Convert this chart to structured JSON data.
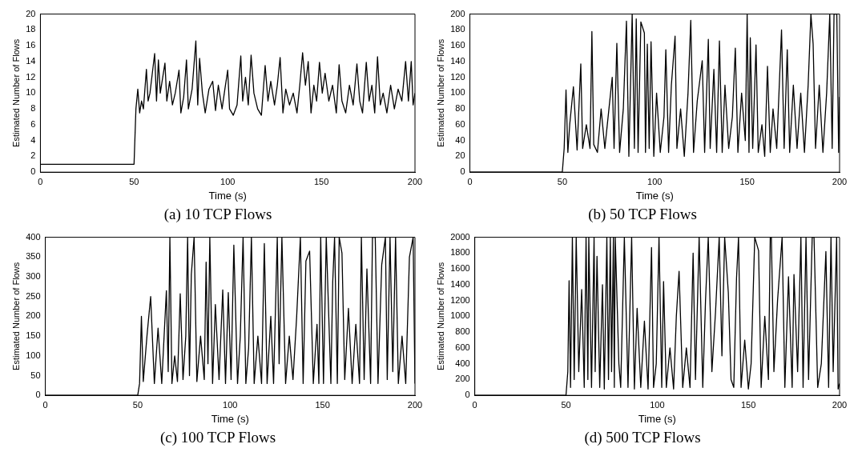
{
  "chart_data": [
    {
      "type": "line",
      "title": "(a) 10 TCP Flows",
      "xlabel": "Time (s)",
      "ylabel": "Estimated Number of Flows",
      "xlim": [
        0,
        200
      ],
      "ylim": [
        0,
        20
      ],
      "xticks": [
        0,
        50,
        100,
        150,
        200
      ],
      "yticks": [
        0,
        2,
        4,
        6,
        8,
        10,
        12,
        14,
        16,
        18,
        20
      ],
      "x": [
        0,
        50,
        51,
        52,
        53,
        54,
        55,
        56.6,
        57.5,
        58.5,
        61,
        62,
        63,
        64,
        66.5,
        67.5,
        69,
        70.5,
        72,
        74,
        75,
        76.5,
        78,
        79,
        81,
        83,
        84,
        85,
        86.5,
        88,
        90,
        92,
        93.5,
        95,
        97,
        98.5,
        100,
        101,
        103,
        105,
        107,
        108,
        109.5,
        111,
        112.5,
        114,
        116,
        118,
        120,
        121.5,
        123,
        125,
        126.5,
        128,
        129.5,
        131,
        133,
        135,
        137,
        138.5,
        140,
        141.5,
        143,
        144.5,
        146,
        147.5,
        149,
        150.5,
        152,
        154,
        156,
        158,
        159.5,
        161,
        163,
        165,
        167,
        169,
        170.5,
        172,
        174,
        175.5,
        177,
        178.5,
        180,
        181.5,
        183,
        185,
        187,
        189,
        191,
        193,
        195,
        196.5,
        198,
        199,
        200
      ],
      "series": [
        {
          "color": "#000000",
          "values": [
            1,
            1,
            8,
            10.5,
            7.5,
            9,
            8,
            13,
            9,
            10,
            15,
            9,
            14.2,
            10,
            13.8,
            9,
            11.5,
            8.5,
            10,
            12.9,
            7.5,
            9.5,
            14.2,
            8,
            10.5,
            16.6,
            8.5,
            14.4,
            10,
            7.5,
            10.5,
            11.5,
            7.8,
            11,
            8,
            10.5,
            12.9,
            8,
            7.2,
            8.5,
            14.7,
            9,
            12,
            8.5,
            14.8,
            10,
            8,
            7.2,
            13.5,
            9,
            11.5,
            8.5,
            11,
            14.5,
            7.5,
            10.5,
            8.5,
            10,
            7.5,
            11,
            15.1,
            11,
            14,
            7.5,
            11,
            9,
            13.9,
            10,
            12.5,
            9,
            11,
            7.5,
            13.6,
            9,
            7.5,
            11,
            8.5,
            13.7,
            9,
            7.5,
            13.9,
            9,
            11,
            7.5,
            14.6,
            8.5,
            10,
            7.5,
            11,
            8,
            10.5,
            9,
            14,
            9,
            14,
            8.5,
            10
          ]
        }
      ]
    },
    {
      "type": "line",
      "title": "(b) 50 TCP Flows",
      "xlabel": "Time (s)",
      "ylabel": "Estimated Number of Flows",
      "xlim": [
        0,
        200
      ],
      "ylim": [
        0,
        200
      ],
      "xticks": [
        0,
        50,
        100,
        150,
        200
      ],
      "yticks": [
        0,
        20,
        40,
        60,
        80,
        100,
        120,
        140,
        160,
        180,
        200
      ],
      "x": [
        0,
        50,
        51,
        52,
        53,
        54,
        56,
        58,
        60,
        61,
        63,
        65,
        66,
        67,
        69,
        71,
        73,
        75,
        77,
        78,
        79.5,
        81,
        83,
        84.7,
        86,
        87.8,
        89,
        90,
        91,
        92.5,
        94.4,
        95,
        96,
        97,
        98,
        99.5,
        101,
        103,
        105,
        106,
        107.5,
        109,
        111,
        112,
        114,
        116,
        118,
        119.5,
        121,
        123,
        125.7,
        127,
        129,
        130,
        132,
        133.5,
        135,
        136.5,
        138,
        140,
        142,
        143.6,
        145,
        147,
        149,
        150,
        151,
        151.7,
        153,
        154.8,
        156,
        158,
        159.5,
        161,
        162.5,
        164,
        166,
        168.6,
        170,
        171.7,
        173,
        175,
        177,
        179,
        181,
        183,
        184.5,
        185.7,
        187,
        189,
        191,
        193,
        194.7,
        196,
        197,
        198.5,
        199.5,
        200
      ],
      "series": [
        {
          "color": "#000000",
          "values": [
            0,
            0,
            30,
            104,
            25,
            60,
            108,
            28,
            137,
            30,
            60,
            30,
            178,
            35,
            25,
            80,
            30,
            75,
            120,
            30,
            163,
            25,
            80,
            191,
            20,
            200,
            30,
            194,
            25,
            190,
            176,
            25,
            162,
            30,
            165,
            20,
            100,
            25,
            70,
            155,
            25,
            110,
            172,
            30,
            80,
            20,
            100,
            192,
            25,
            90,
            141,
            25,
            168,
            30,
            130,
            25,
            166,
            25,
            110,
            30,
            70,
            157,
            25,
            100,
            40,
            200,
            25,
            170,
            30,
            161,
            25,
            60,
            20,
            134,
            25,
            80,
            30,
            180,
            30,
            155,
            25,
            110,
            30,
            100,
            25,
            110,
            200,
            162,
            30,
            110,
            25,
            100,
            200,
            30,
            200,
            200,
            25,
            95
          ]
        }
      ]
    },
    {
      "type": "line",
      "title": "(c) 100 TCP Flows",
      "xlabel": "Time (s)",
      "ylabel": "Estimated Number of Flows",
      "xlim": [
        0,
        200
      ],
      "ylim": [
        0,
        400
      ],
      "xticks": [
        0,
        50,
        100,
        150,
        200
      ],
      "yticks": [
        0,
        50,
        100,
        150,
        200,
        250,
        300,
        350,
        400
      ],
      "x": [
        0,
        50,
        51,
        52,
        53,
        55,
        57,
        59,
        61,
        63,
        65.5,
        66.5,
        67.4,
        68.5,
        70,
        71.5,
        73,
        74.5,
        76,
        77,
        78,
        79,
        80.5,
        82,
        84,
        86,
        87,
        88,
        89,
        90.5,
        92,
        94,
        96,
        97.5,
        99,
        100.5,
        102,
        104,
        105.5,
        107,
        108.5,
        110,
        111.5,
        113,
        115,
        117,
        118.5,
        120,
        122,
        123.5,
        125.5,
        126.5,
        128,
        130,
        132,
        134,
        136,
        138,
        139.5,
        141,
        143,
        145,
        147,
        148,
        149,
        150.5,
        152,
        154.5,
        155.5,
        156.5,
        158,
        159,
        160.5,
        162,
        164,
        166,
        168,
        170,
        171,
        172.5,
        174,
        176,
        177,
        178.5,
        180,
        182,
        184,
        185,
        186.5,
        188,
        189.5,
        191,
        193,
        195,
        197,
        199,
        200
      ],
      "series": [
        {
          "color": "#000000",
          "values": [
            0,
            0,
            30,
            200,
            35,
            150,
            250,
            30,
            170,
            30,
            265,
            60,
            400,
            30,
            100,
            35,
            257,
            40,
            150,
            400,
            50,
            306,
            400,
            35,
            150,
            40,
            337,
            80,
            400,
            30,
            230,
            40,
            267,
            30,
            260,
            40,
            380,
            30,
            150,
            400,
            30,
            120,
            400,
            30,
            150,
            30,
            384,
            30,
            200,
            30,
            400,
            80,
            400,
            30,
            150,
            40,
            200,
            400,
            30,
            340,
            365,
            30,
            180,
            30,
            400,
            30,
            400,
            30,
            287,
            400,
            30,
            400,
            360,
            40,
            220,
            30,
            180,
            30,
            400,
            40,
            320,
            30,
            400,
            400,
            30,
            330,
            400,
            40,
            400,
            60,
            400,
            30,
            150,
            30,
            350,
            400,
            30
          ]
        }
      ]
    },
    {
      "type": "line",
      "title": "(d) 500 TCP Flows",
      "xlabel": "Time (s)",
      "ylabel": "Estimated Number of Flows",
      "xlim": [
        0,
        200
      ],
      "ylim": [
        0,
        2000
      ],
      "xticks": [
        0,
        50,
        100,
        150,
        200
      ],
      "yticks": [
        0,
        200,
        400,
        600,
        800,
        1000,
        1200,
        1400,
        1600,
        1800,
        2000
      ],
      "x": [
        0,
        50,
        51,
        51.7,
        52.5,
        53.5,
        54.5,
        55.6,
        57,
        58.6,
        60,
        61,
        62,
        62.5,
        64,
        65.4,
        66,
        67,
        68.5,
        70,
        71,
        72.4,
        73.3,
        74.3,
        75,
        76,
        76.5,
        77,
        79,
        80,
        82,
        84,
        86,
        87.5,
        89,
        91,
        93,
        95,
        96.9,
        98,
        99.5,
        101,
        102.5,
        103.5,
        105,
        107,
        109,
        110.5,
        112,
        114,
        116,
        118,
        119.7,
        121,
        123,
        125,
        126.5,
        128,
        130,
        132,
        134,
        135.5,
        137,
        139,
        140.5,
        142,
        143.5,
        144.6,
        146,
        148,
        150,
        151.5,
        153.5,
        155.6,
        157,
        159,
        161,
        162,
        162.6,
        164,
        166,
        168.5,
        170,
        172,
        174,
        175,
        177,
        178.8,
        180,
        181.6,
        183,
        185,
        186,
        188,
        190,
        192.5,
        194,
        195.3,
        196.5,
        198.4,
        199.2,
        200
      ],
      "series": [
        {
          "color": "#000000",
          "values": [
            0,
            0,
            300,
            1450,
            100,
            2000,
            200,
            2000,
            300,
            1340,
            100,
            2000,
            200,
            2000,
            100,
            2000,
            300,
            1760,
            100,
            1400,
            80,
            2000,
            200,
            2000,
            300,
            2000,
            100,
            2000,
            400,
            100,
            2000,
            100,
            2000,
            80,
            1100,
            100,
            940,
            80,
            1870,
            100,
            400,
            2000,
            100,
            1440,
            100,
            600,
            80,
            1000,
            1570,
            100,
            600,
            100,
            1800,
            200,
            2000,
            100,
            1200,
            2000,
            300,
            1060,
            2000,
            500,
            2000,
            1300,
            200,
            100,
            1480,
            2000,
            100,
            700,
            80,
            400,
            2000,
            1830,
            100,
            1000,
            200,
            2000,
            2000,
            300,
            1200,
            2000,
            100,
            1500,
            100,
            1530,
            300,
            2000,
            100,
            2000,
            200,
            2000,
            2000,
            100,
            400,
            1820,
            100,
            2000,
            300,
            2000,
            80,
            150
          ]
        }
      ]
    }
  ]
}
